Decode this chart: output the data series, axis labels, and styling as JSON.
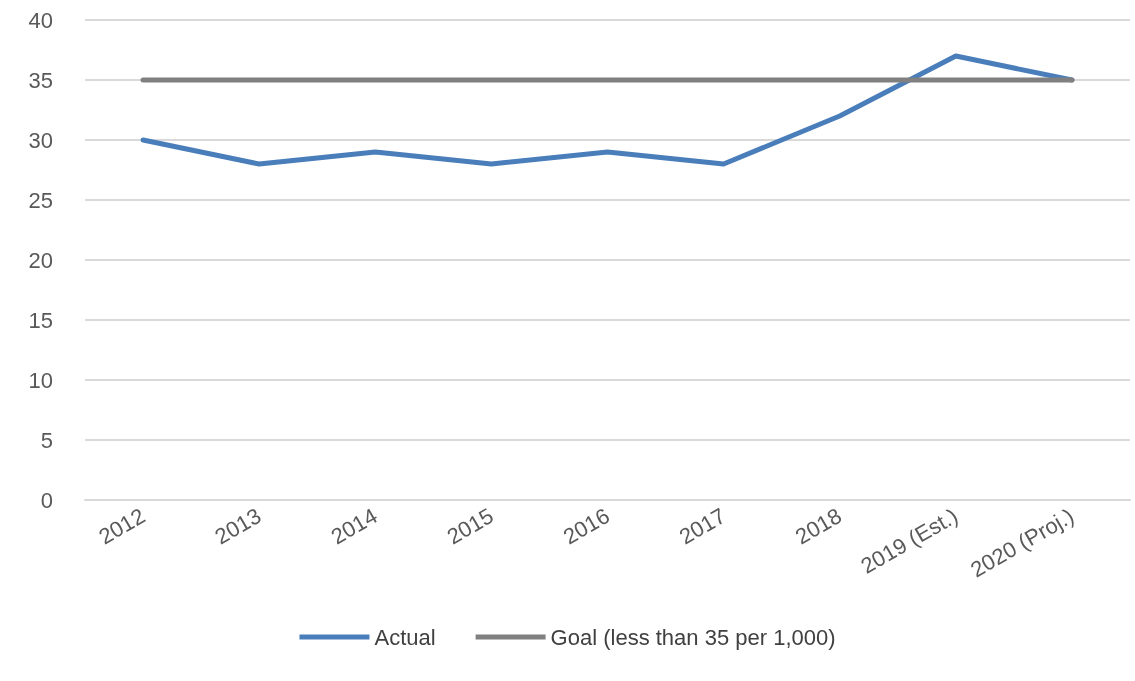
{
  "chart_data": {
    "type": "line",
    "categories": [
      "2012",
      "2013",
      "2014",
      "2015",
      "2016",
      "2017",
      "2018",
      "2019 (Est.)",
      "2020 (Proj.)"
    ],
    "series": [
      {
        "name": "Actual",
        "color": "#4a7ebb",
        "values": [
          30,
          28,
          29,
          28,
          29,
          28,
          32,
          37,
          35
        ]
      },
      {
        "name": "Goal (less than 35 per 1,000)",
        "color": "#808080",
        "values": [
          35,
          35,
          35,
          35,
          35,
          35,
          35,
          35,
          35
        ]
      }
    ],
    "ylim": [
      0,
      40
    ],
    "yticks": [
      0,
      5,
      10,
      15,
      20,
      25,
      30,
      35,
      40
    ],
    "grid": "y",
    "legend": "bottom",
    "marker": "none",
    "line_style": "solid"
  }
}
